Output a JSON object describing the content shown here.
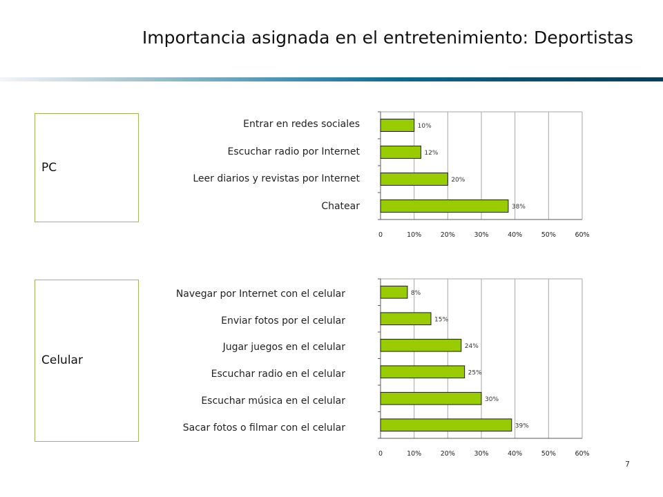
{
  "slide": {
    "title": "Importancia asignada en el entretenimiento: Deportistas",
    "page_number": "7",
    "accent_color": "#9bbb59",
    "bar_color": "#99cc00"
  },
  "sections": {
    "pc": {
      "label": "PC"
    },
    "celular": {
      "label": "Celular"
    }
  },
  "chart_data": [
    {
      "type": "bar",
      "orientation": "horizontal",
      "categories": [
        "Entrar en redes sociales",
        "Escuchar radio por Internet",
        "Leer diarios y revistas por Internet",
        "Chatear"
      ],
      "values": [
        10,
        12,
        20,
        38
      ],
      "data_labels": [
        "10%",
        "12%",
        "20%",
        "38%"
      ],
      "xlim": [
        0,
        60
      ],
      "x_ticks": [
        "0",
        "10%",
        "20%",
        "30%",
        "40%",
        "50%",
        "60%"
      ],
      "grid": true
    },
    {
      "type": "bar",
      "orientation": "horizontal",
      "categories": [
        "Navegar por Internet con el celular",
        "Enviar fotos por el celular",
        "Jugar juegos en el celular",
        "Escuchar radio en el celular",
        "Escuchar música en el celular",
        "Sacar fotos o filmar con el celular"
      ],
      "values": [
        8,
        15,
        24,
        25,
        30,
        39
      ],
      "data_labels": [
        "8%",
        "15%",
        "24%",
        "25%",
        "30%",
        "39%"
      ],
      "xlim": [
        0,
        60
      ],
      "x_ticks": [
        "0",
        "10%",
        "20%",
        "30%",
        "40%",
        "50%",
        "60%"
      ],
      "grid": true
    }
  ]
}
